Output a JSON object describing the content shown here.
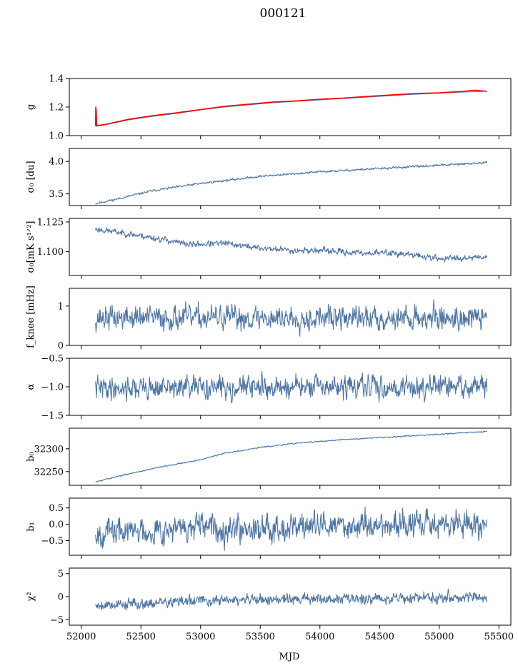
{
  "figure": {
    "title": "000121"
  },
  "chart_data": {
    "type": "line",
    "title": "000121",
    "shared_x": {
      "label": "MJD",
      "lim": [
        51900,
        55600
      ],
      "ticks": [
        52000,
        52500,
        53000,
        53500,
        54000,
        54500,
        55000,
        55500
      ],
      "tick_labels": [
        "52000",
        "52500",
        "53000",
        "53500",
        "54000",
        "54500",
        "55000",
        "55500"
      ],
      "data_range": [
        52120,
        55400
      ]
    },
    "panels": [
      {
        "id": "g",
        "ylabel": "g",
        "ylim": [
          1.0,
          1.4
        ],
        "yticks": [
          1.0,
          1.2,
          1.4
        ],
        "ytick_labels": [
          "1.0",
          "1.2",
          "1.4"
        ],
        "series": [
          {
            "role": "fit",
            "color": "#4e76a6",
            "x": [
              52120,
              52200,
              52400,
              52600,
              52800,
              53000,
              53200,
              53400,
              53600,
              53800,
              54000,
              54200,
              54400,
              54600,
              54800,
              55000,
              55200,
              55400
            ],
            "y": [
              1.065,
              1.075,
              1.11,
              1.135,
              1.155,
              1.18,
              1.2,
              1.215,
              1.23,
              1.24,
              1.25,
              1.26,
              1.27,
              1.28,
              1.29,
              1.297,
              1.305,
              1.31
            ]
          },
          {
            "role": "data",
            "color": "#ff0000",
            "x": [
              52120,
              52122,
              52124,
              52126,
              52130,
              52200,
              52400,
              52600,
              52800,
              53000,
              53200,
              53400,
              53600,
              53800,
              54000,
              54200,
              54400,
              54600,
              54800,
              55000,
              55200,
              55300,
              55400
            ],
            "y": [
              1.07,
              1.2,
              1.07,
              1.18,
              1.07,
              1.078,
              1.115,
              1.14,
              1.16,
              1.182,
              1.205,
              1.22,
              1.235,
              1.243,
              1.255,
              1.263,
              1.275,
              1.285,
              1.295,
              1.3,
              1.31,
              1.318,
              1.31
            ]
          }
        ]
      },
      {
        "id": "sigma0_du",
        "ylabel": "σ₀ [du]",
        "ylim": [
          3.32,
          4.2
        ],
        "yticks": [
          3.5,
          4.0
        ],
        "ytick_labels": [
          "3.5",
          "4.0"
        ],
        "trend": {
          "x": [
            52120,
            52300,
            52600,
            53000,
            53500,
            54000,
            54500,
            55000,
            55400
          ],
          "y": [
            3.35,
            3.42,
            3.55,
            3.66,
            3.77,
            3.84,
            3.89,
            3.94,
            3.98
          ]
        },
        "noise": 0.008,
        "seed": 11,
        "n": 900
      },
      {
        "id": "sigma0_mk",
        "ylabel": "σ₀[mK s¹ᐟ²]",
        "ylim": [
          1.08,
          1.128
        ],
        "yticks": [
          1.1,
          1.125
        ],
        "ytick_labels": [
          "1.100",
          "1.125"
        ],
        "trend": {
          "x": [
            52120,
            52400,
            52700,
            52900,
            53200,
            53500,
            53800,
            54000,
            54300,
            54600,
            54800,
            55000,
            55200,
            55400
          ],
          "y": [
            1.119,
            1.115,
            1.11,
            1.106,
            1.107,
            1.103,
            1.101,
            1.101,
            1.099,
            1.099,
            1.097,
            1.094,
            1.095,
            1.096
          ]
        },
        "noise": 0.0012,
        "seed": 23,
        "n": 900
      },
      {
        "id": "fknee",
        "ylabel": "f_knee [mHz]",
        "ylim": [
          0.0,
          1.45
        ],
        "yticks": [
          0,
          1
        ],
        "ytick_labels": [
          "0",
          "1"
        ],
        "trend": {
          "x": [
            52120,
            55400
          ],
          "y": [
            0.7,
            0.7
          ]
        },
        "noise": 0.14,
        "seed": 37,
        "n": 900
      },
      {
        "id": "alpha",
        "ylabel": "α",
        "ylim": [
          -1.5,
          -0.5
        ],
        "yticks": [
          -1.5,
          -1.0,
          -0.5
        ],
        "ytick_labels": [
          "−1.5",
          "−1.0",
          "−0.5"
        ],
        "trend": {
          "x": [
            52120,
            55400
          ],
          "y": [
            -1.02,
            -1.0
          ]
        },
        "noise": 0.09,
        "seed": 41,
        "n": 900
      },
      {
        "id": "b0",
        "ylabel": "b₀",
        "ylim": [
          32220,
          32345
        ],
        "yticks": [
          32250,
          32300
        ],
        "ytick_labels": [
          "32250",
          "32300"
        ],
        "trend": {
          "x": [
            52120,
            52400,
            52700,
            53000,
            53200,
            53500,
            53800,
            54200,
            54600,
            55000,
            55400
          ],
          "y": [
            32228,
            32245,
            32262,
            32276,
            32290,
            32303,
            32312,
            32320,
            32326,
            32332,
            32338
          ]
        },
        "noise": 0.6,
        "seed": 53,
        "n": 900
      },
      {
        "id": "b1",
        "ylabel": "b₁",
        "ylim": [
          -0.95,
          0.8
        ],
        "yticks": [
          -0.5,
          0.0,
          0.5
        ],
        "ytick_labels": [
          "−0.5",
          "0.0",
          "0.5"
        ],
        "trend": {
          "x": [
            52120,
            52500,
            53000,
            54000,
            55400
          ],
          "y": [
            -0.25,
            -0.2,
            -0.12,
            -0.05,
            0.02
          ]
        },
        "noise": 0.19,
        "seed": 67,
        "n": 900
      },
      {
        "id": "chi2",
        "ylabel": "χ²",
        "ylim": [
          -6.2,
          6.2
        ],
        "yticks": [
          -5,
          0,
          5
        ],
        "ytick_labels": [
          "−5",
          "0",
          "5"
        ],
        "trend": {
          "x": [
            52120,
            52500,
            53000,
            54000,
            55400
          ],
          "y": [
            -1.8,
            -1.5,
            -0.9,
            -0.5,
            0.0
          ]
        },
        "noise": 0.55,
        "seed": 79,
        "n": 900
      }
    ]
  }
}
